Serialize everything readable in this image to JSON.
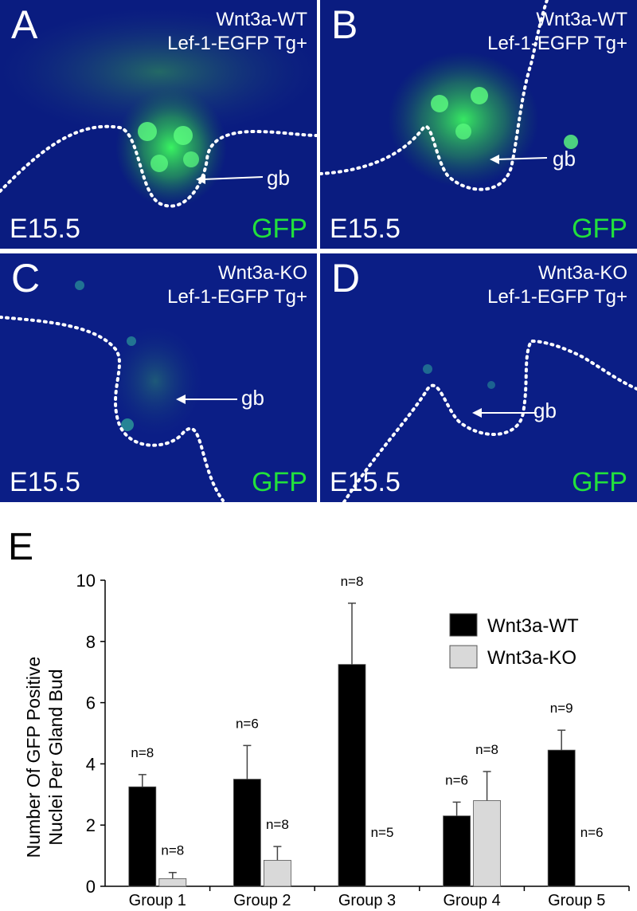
{
  "panels": [
    {
      "label": "A",
      "genotype_line1": "Wnt3a-WT",
      "genotype_line2": "Lef-1-EGFP Tg+",
      "stage": "E15.5",
      "stain": "GFP",
      "annotation": "gb"
    },
    {
      "label": "B",
      "genotype_line1": "Wnt3a-WT",
      "genotype_line2": "Lef-1-EGFP Tg+",
      "stage": "E15.5",
      "stain": "GFP",
      "annotation": "gb"
    },
    {
      "label": "C",
      "genotype_line1": "Wnt3a-KO",
      "genotype_line2": "Lef-1-EGFP Tg+",
      "stage": "E15.5",
      "stain": "GFP",
      "annotation": "gb"
    },
    {
      "label": "D",
      "genotype_line1": "Wnt3a-KO",
      "genotype_line2": "Lef-1-EGFP Tg+",
      "stage": "E15.5",
      "stain": "GFP",
      "annotation": "gb"
    }
  ],
  "colors": {
    "tissue_blue": "#0b1f86",
    "gfp_green": "#22e03c",
    "bar_wt": "#000000",
    "bar_ko": "#d9d9d9"
  },
  "chart_data": {
    "panel_label": "E",
    "type": "bar",
    "ylabel_line1": "Number Of GFP Positive",
    "ylabel_line2": "Nuclei Per Gland Bud",
    "ylim": [
      0,
      10
    ],
    "yticks": [
      0,
      2,
      4,
      6,
      8,
      10
    ],
    "grid": false,
    "legend_position": "top-right",
    "categories": [
      "Group 1",
      "Group 2",
      "Group 3",
      "Group 4",
      "Group 5"
    ],
    "series": [
      {
        "name": "Wnt3a-WT",
        "values": [
          3.25,
          3.5,
          7.25,
          2.3,
          4.45
        ],
        "errors": [
          0.4,
          1.1,
          2.0,
          0.45,
          0.65
        ],
        "n_labels": [
          "n=8",
          "n=6",
          "n=8",
          "n=6",
          "n=9"
        ]
      },
      {
        "name": "Wnt3a-KO",
        "values": [
          0.25,
          0.85,
          0,
          2.8,
          0
        ],
        "errors": [
          0.2,
          0.45,
          0,
          0.95,
          0
        ],
        "n_labels": [
          "n=8",
          "n=8",
          "n=5",
          "n=8",
          "n=6"
        ]
      }
    ]
  }
}
